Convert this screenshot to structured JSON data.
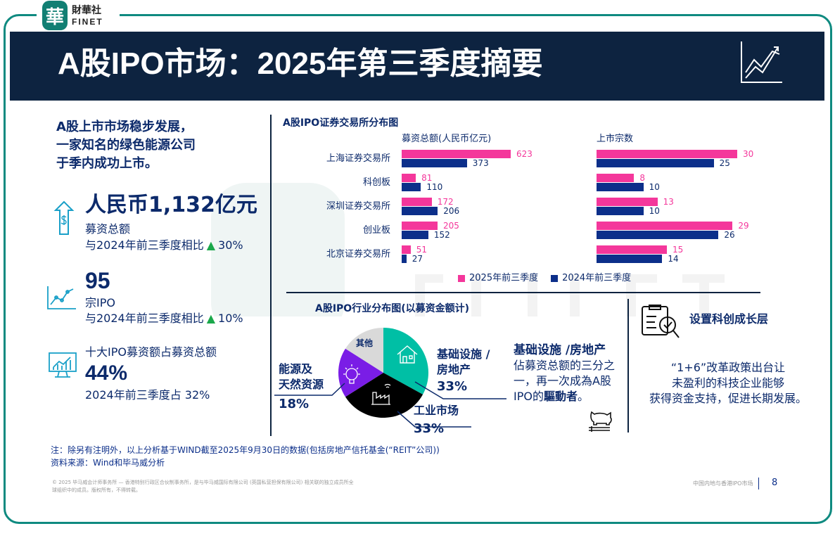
{
  "brand": {
    "seal": "華",
    "name": "財華社",
    "en": "FINET"
  },
  "title": "A股IPO市场：2025年第三季度摘要",
  "left": {
    "headline": [
      "A股上市市场稳步发展，",
      "一家知名的绿色能源公司",
      "于季内成功上市。"
    ],
    "stat1": {
      "value": "人民币1,132亿元",
      "label": "募资总额",
      "compare": "与2024年前三季度相比",
      "change": "30%"
    },
    "stat2": {
      "value": "95",
      "label": "宗IPO",
      "compare": "与2024年前三季度相比",
      "change": "10%"
    },
    "stat3": {
      "label": "十大IPO募资额占募资总额",
      "value": "44%",
      "compare": "2024年前三季度占 32%"
    }
  },
  "chart_data": {
    "type": "bar",
    "title": "A股IPO证券交易所分布图",
    "categories": [
      "上海证券交易所",
      "科创板",
      "深圳证券交易所",
      "创业板",
      "北京证券交易所"
    ],
    "panels": [
      {
        "subtitle": "募资总额(人民币亿元)",
        "series": [
          {
            "name": "2025年前三季度",
            "color": "#f4379b",
            "values": [
              623,
              81,
              172,
              205,
              51
            ]
          },
          {
            "name": "2024年前三季度",
            "color": "#0c2f8a",
            "values": [
              373,
              110,
              206,
              152,
              27
            ]
          }
        ],
        "xlim": [
          0,
          623
        ]
      },
      {
        "subtitle": "上市宗数",
        "series": [
          {
            "name": "2025年前三季度",
            "color": "#f4379b",
            "values": [
              30,
              8,
              13,
              29,
              15
            ]
          },
          {
            "name": "2024年前三季度",
            "color": "#0c2f8a",
            "values": [
              25,
              10,
              10,
              26,
              14
            ]
          }
        ],
        "xlim": [
          0,
          30
        ]
      }
    ],
    "legend": [
      "2025年前三季度",
      "2024年前三季度"
    ]
  },
  "pie": {
    "title": "A股IPO行业分布图(以募资金额计)",
    "slices": [
      {
        "name": "基础设施 / 房地产",
        "value": 33,
        "pct": "33%",
        "color": "#00bfa5"
      },
      {
        "name": "工业市场",
        "value": 33,
        "pct": "33%",
        "color": "#000000"
      },
      {
        "name": "能源及天然资源",
        "value": 18,
        "pct": "18%",
        "color": "#7a1de6"
      },
      {
        "name": "其他",
        "value": 16,
        "pct": "",
        "color": "#d9d9d9"
      }
    ],
    "labels": {
      "infra": [
        "基础设施 /",
        "房地产"
      ],
      "energy": [
        "能源及",
        "天然资源"
      ]
    },
    "note": {
      "title": "基础设施 /房地产",
      "text": [
        "佔募资总额的三分之",
        "一，再一次成為A股",
        "IPO的"
      ],
      "bold": "驅動者",
      "end": "。"
    }
  },
  "right": {
    "title": "设置科创成长层",
    "text": [
      "“1+6”改革政策出台让",
      "未盈利的科技企业能够",
      "获得资金支持，促进长期发展。"
    ]
  },
  "footer": {
    "note": "注：除另有注明外，以上分析基于WIND截至2025年9月30日的数据(包括房地产信托基金(“REIT”公司))",
    "source": "资料来源：Wind和毕马威分析",
    "legal": [
      "© 2025 毕马威会计师事务所 — 香港特别行政区合伙制事务所，是与毕马威国际有限公司 (英国私营担保有限公司) 相关联的独立成员所全",
      "球组织中的成员。版权所有，不得转载。"
    ],
    "section": "中国内地与香港IPO市场",
    "page": "8"
  }
}
